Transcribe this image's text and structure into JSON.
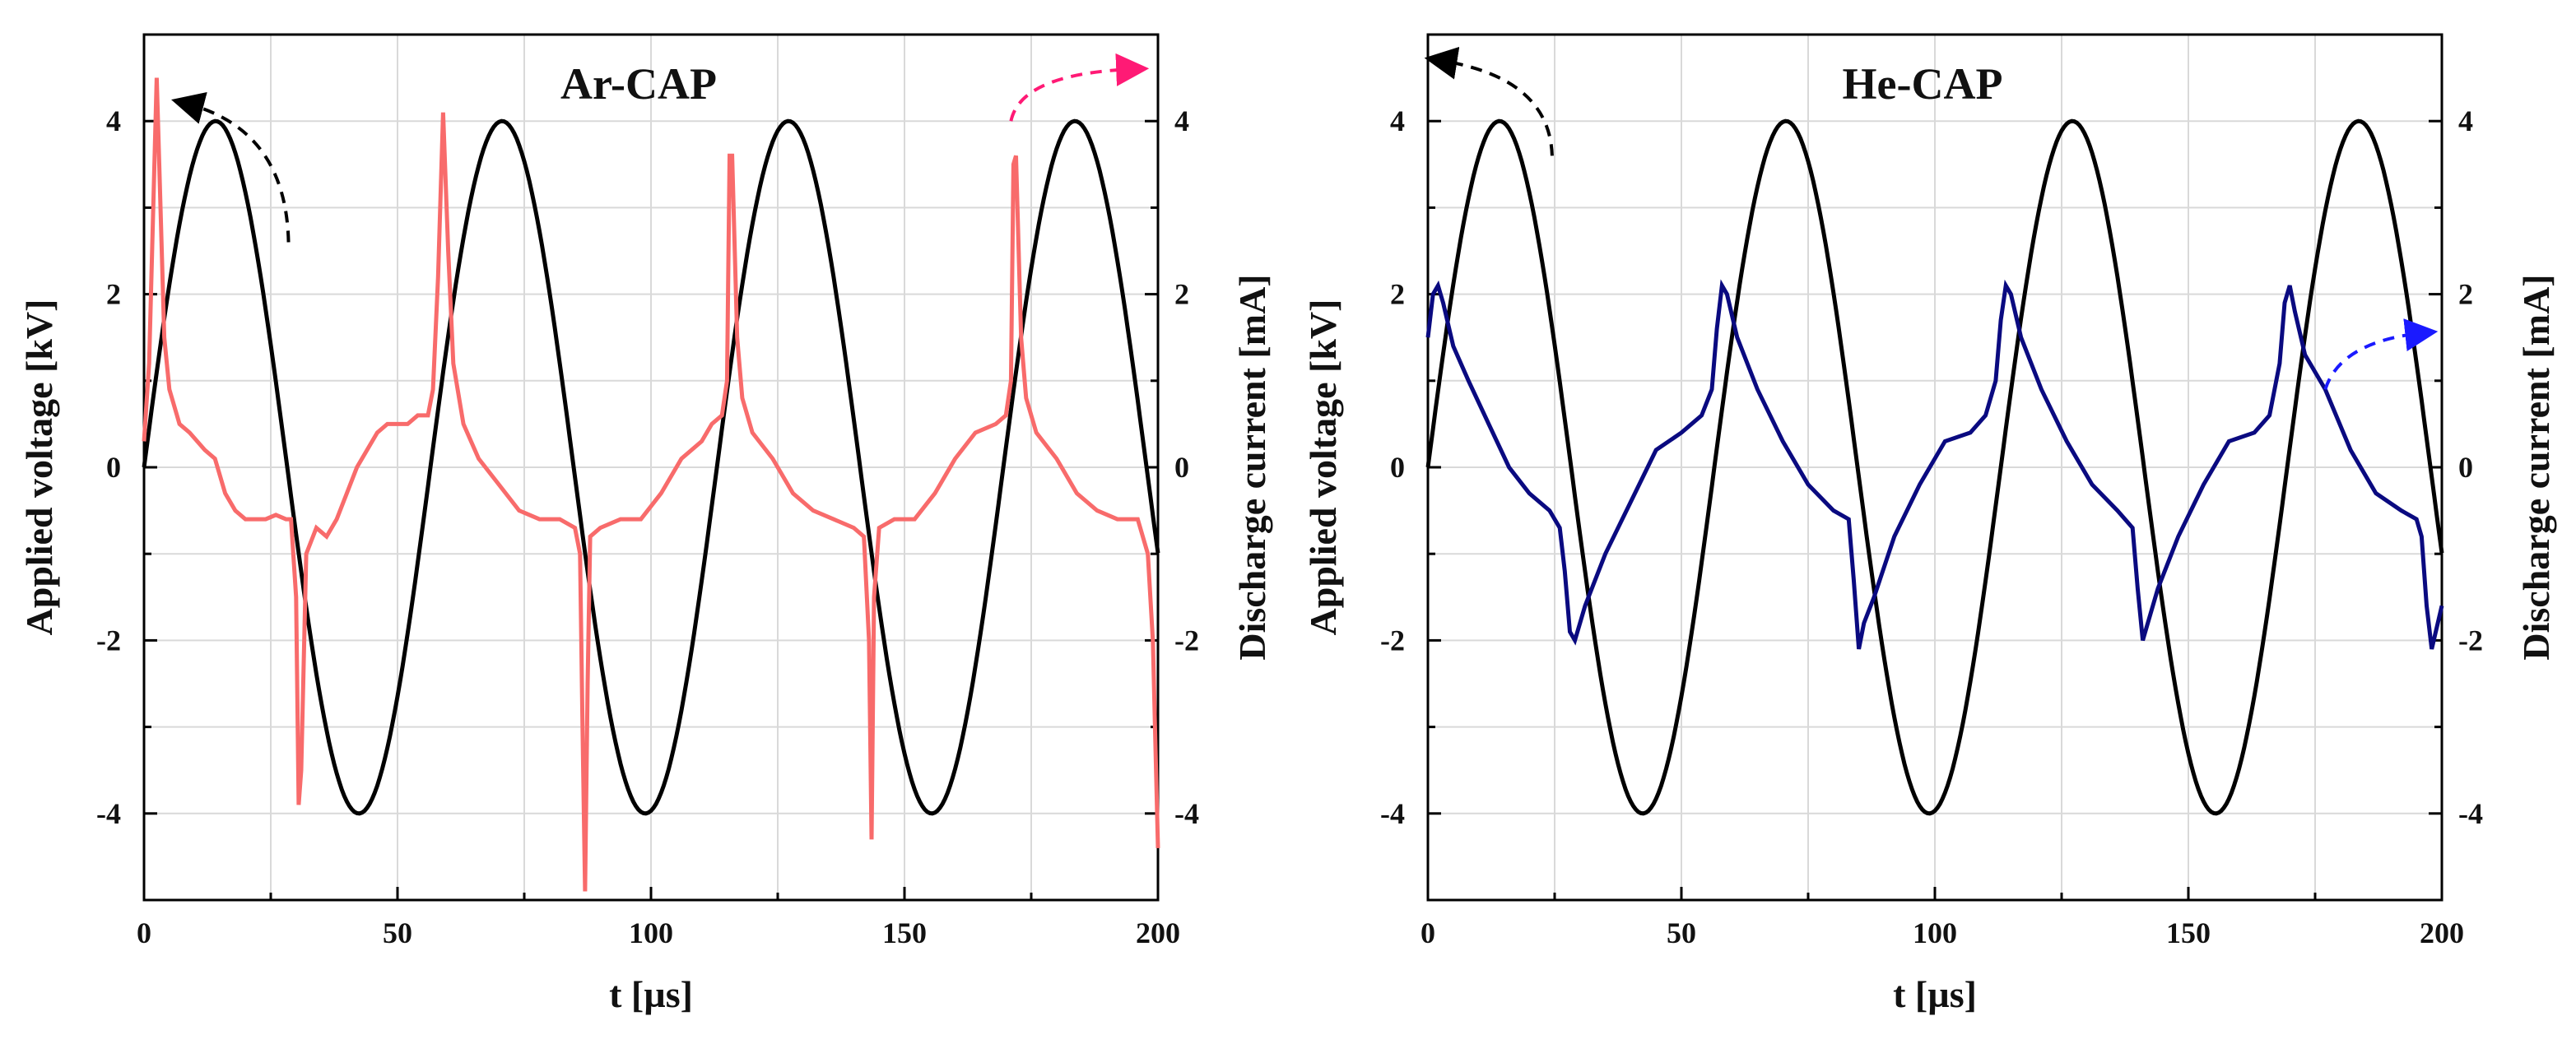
{
  "chart_data": [
    {
      "type": "line",
      "title": "Ar-CAP",
      "xlabel": "t [µs]",
      "ylabel_left": "Applied voltage [kV]",
      "ylabel_right": "Discharge current [mA]",
      "xlim": [
        0,
        200
      ],
      "ylim_left": [
        -5,
        5
      ],
      "ylim_right": [
        -5,
        5
      ],
      "xticks": [
        "0",
        "50",
        "100",
        "150",
        "200"
      ],
      "yticks_left": [
        "-4",
        "-2",
        "0",
        "2",
        "4"
      ],
      "yticks_right": [
        "-4",
        "-2",
        "0",
        "2",
        "4"
      ],
      "grid": true,
      "voltage": {
        "name": "Applied voltage",
        "axis": "left",
        "color": "#000000",
        "amplitude_kv": 4.0,
        "period_us": 56.5,
        "phase_us": 0
      },
      "series": [
        {
          "name": "Discharge current",
          "axis": "right",
          "color": "#f86b6b",
          "x": [
            0,
            1,
            2.5,
            3,
            4,
            5,
            7,
            9,
            12,
            14,
            16,
            18,
            20,
            22,
            24,
            26,
            28,
            29,
            30,
            30.5,
            31,
            32,
            34,
            36,
            38,
            40,
            42,
            44,
            46,
            48,
            50,
            52,
            54,
            56,
            57,
            58,
            59,
            60,
            61,
            63,
            66,
            70,
            74,
            78,
            82,
            85,
            86,
            86.5,
            87,
            87.5,
            88,
            90,
            94,
            98,
            102,
            106,
            110,
            112,
            114,
            115,
            115.5,
            116,
            117,
            118,
            120,
            124,
            128,
            132,
            136,
            140,
            142,
            143,
            143.5,
            144,
            145,
            148,
            152,
            156,
            160,
            164,
            168,
            170,
            171,
            171.5,
            172,
            173,
            174,
            176,
            180,
            184,
            188,
            192,
            196,
            198,
            199,
            200
          ],
          "y": [
            0.3,
            1.2,
            4.5,
            3.5,
            1.5,
            0.9,
            0.5,
            0.4,
            0.2,
            0.1,
            -0.3,
            -0.5,
            -0.6,
            -0.6,
            -0.6,
            -0.55,
            -0.6,
            -0.6,
            -1.5,
            -3.9,
            -3.5,
            -1.0,
            -0.7,
            -0.8,
            -0.6,
            -0.3,
            0.0,
            0.2,
            0.4,
            0.5,
            0.5,
            0.5,
            0.6,
            0.6,
            0.9,
            2.2,
            4.1,
            2.5,
            1.2,
            0.5,
            0.1,
            -0.2,
            -0.5,
            -0.6,
            -0.6,
            -0.7,
            -1.0,
            -3.0,
            -4.9,
            -2.5,
            -0.8,
            -0.7,
            -0.6,
            -0.6,
            -0.3,
            0.1,
            0.3,
            0.5,
            0.6,
            1.0,
            3.6,
            3.6,
            1.5,
            0.8,
            0.4,
            0.1,
            -0.3,
            -0.5,
            -0.6,
            -0.7,
            -0.8,
            -2.0,
            -4.3,
            -1.5,
            -0.7,
            -0.6,
            -0.6,
            -0.3,
            0.1,
            0.4,
            0.5,
            0.6,
            1.0,
            3.5,
            3.6,
            1.5,
            0.8,
            0.4,
            0.1,
            -0.3,
            -0.5,
            -0.6,
            -0.6,
            -1.0,
            -2.0,
            -4.4
          ]
        }
      ],
      "annotations": [
        {
          "label": "voltage-axis-arrow",
          "points_to": "left axis",
          "color": "#000000"
        },
        {
          "label": "current-axis-arrow",
          "points_to": "right axis",
          "color": "#ff1a75"
        }
      ]
    },
    {
      "type": "line",
      "title": "He-CAP",
      "xlabel": "t [µs]",
      "ylabel_left": "Applied voltage [kV]",
      "ylabel_right": "Discharge current [mA]",
      "xlim": [
        0,
        200
      ],
      "ylim_left": [
        -5,
        5
      ],
      "ylim_right": [
        -5,
        5
      ],
      "xticks": [
        "0",
        "50",
        "100",
        "150",
        "200"
      ],
      "yticks_left": [
        "-4",
        "-2",
        "0",
        "2",
        "4"
      ],
      "yticks_right": [
        "-4",
        "-2",
        "0",
        "2",
        "4"
      ],
      "grid": true,
      "voltage": {
        "name": "Applied voltage",
        "axis": "left",
        "color": "#000000",
        "amplitude_kv": 4.0,
        "period_us": 56.5,
        "phase_us": 0
      },
      "series": [
        {
          "name": "Discharge current",
          "axis": "right",
          "color": "#0a0a80",
          "x": [
            0,
            1,
            2,
            3,
            5,
            8,
            12,
            16,
            20,
            24,
            26,
            27,
            28,
            29,
            31,
            35,
            40,
            45,
            50,
            54,
            56,
            57,
            58,
            59,
            61,
            65,
            70,
            75,
            80,
            83,
            84,
            85,
            86,
            88,
            92,
            97,
            102,
            107,
            110,
            112,
            113,
            114,
            115,
            117,
            121,
            126,
            131,
            136,
            139,
            140,
            141,
            142,
            144,
            148,
            153,
            158,
            163,
            166,
            168,
            169,
            170,
            171,
            173,
            177,
            182,
            187,
            192,
            195,
            196,
            197,
            198,
            200
          ],
          "y": [
            1.5,
            2.0,
            2.1,
            1.9,
            1.4,
            1.0,
            0.5,
            0.0,
            -0.3,
            -0.5,
            -0.7,
            -1.2,
            -1.9,
            -2.0,
            -1.6,
            -1.0,
            -0.4,
            0.2,
            0.4,
            0.6,
            0.9,
            1.6,
            2.1,
            2.0,
            1.5,
            0.9,
            0.3,
            -0.2,
            -0.5,
            -0.6,
            -1.3,
            -2.1,
            -1.8,
            -1.5,
            -0.8,
            -0.2,
            0.3,
            0.4,
            0.6,
            1.0,
            1.7,
            2.1,
            2.0,
            1.5,
            0.9,
            0.3,
            -0.2,
            -0.5,
            -0.7,
            -1.4,
            -2.0,
            -1.8,
            -1.4,
            -0.8,
            -0.2,
            0.3,
            0.4,
            0.6,
            1.2,
            1.9,
            2.1,
            1.8,
            1.3,
            0.9,
            0.2,
            -0.3,
            -0.5,
            -0.6,
            -0.8,
            -1.6,
            -2.1,
            -1.6
          ]
        }
      ],
      "annotations": [
        {
          "label": "voltage-axis-arrow",
          "points_to": "left axis",
          "color": "#000000"
        },
        {
          "label": "current-axis-arrow",
          "points_to": "right axis",
          "color": "#1a1aff"
        }
      ]
    }
  ]
}
